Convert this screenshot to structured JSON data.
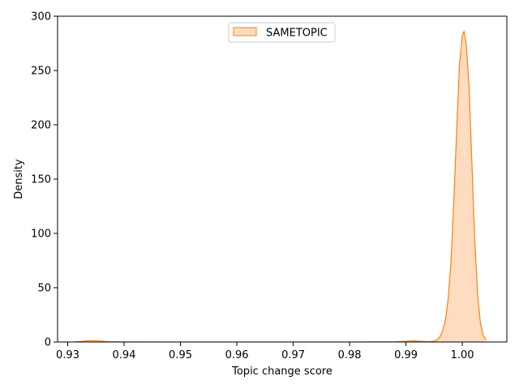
{
  "chart_data": {
    "type": "area",
    "title": "",
    "xlabel": "Topic change score",
    "ylabel": "Density",
    "xlim": [
      0.9282,
      1.0079
    ],
    "ylim": [
      0,
      300
    ],
    "x_ticks": [
      "0.93",
      "0.94",
      "0.95",
      "0.96",
      "0.97",
      "0.98",
      "0.99",
      "1.00"
    ],
    "y_ticks": [
      "0",
      "50",
      "100",
      "150",
      "200",
      "250",
      "300"
    ],
    "grid": false,
    "legend_position": "top-center",
    "series": [
      {
        "name": "SAMETOPIC",
        "stroke_color": "#ff7f0e",
        "fill_color": "#ffdcbf",
        "x": [
          0.9312,
          0.9325,
          0.9335,
          0.9345,
          0.936,
          0.9375,
          0.94,
          0.95,
          0.96,
          0.97,
          0.98,
          0.988,
          0.9905,
          0.9915,
          0.9925,
          0.994,
          0.995,
          0.9955,
          0.996,
          0.9965,
          0.997,
          0.9975,
          0.998,
          0.9985,
          0.999,
          0.9995,
          1.0,
          1.0003,
          1.0007,
          1.0012,
          1.0017,
          1.0022,
          1.0027,
          1.0032,
          1.0037,
          1.0042
        ],
        "y": [
          0.2,
          0.6,
          1.0,
          1.2,
          0.8,
          0.3,
          0.1,
          0.05,
          0.05,
          0.05,
          0.05,
          0.2,
          0.8,
          1.0,
          0.7,
          0.3,
          0.8,
          2.0,
          4.5,
          10,
          20,
          40,
          75,
          130,
          195,
          255,
          282,
          286,
          275,
          235,
          165,
          95,
          45,
          18,
          6,
          2
        ]
      }
    ]
  }
}
